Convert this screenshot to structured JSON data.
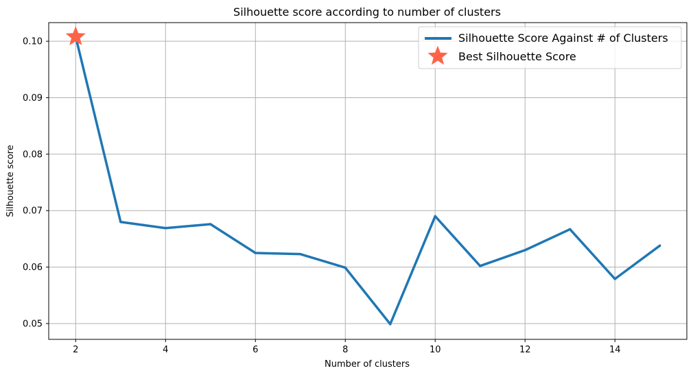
{
  "chart_data": {
    "type": "line",
    "title": "Silhouette score according to number of clusters",
    "xlabel": "Number of clusters",
    "ylabel": "Silhouette score",
    "xlim": [
      1.4,
      15.6
    ],
    "ylim": [
      0.0472,
      0.1033
    ],
    "xticks": [
      2,
      4,
      6,
      8,
      10,
      12,
      14
    ],
    "yticks": [
      0.05,
      0.06,
      0.07,
      0.08,
      0.09,
      0.1
    ],
    "ytick_labels": [
      "0.05",
      "0.06",
      "0.07",
      "0.08",
      "0.09",
      "0.10"
    ],
    "grid": true,
    "legend_position": "top-right",
    "series": [
      {
        "name": "Silhouette Score Against # of Clusters",
        "color": "#1f77b4",
        "x": [
          2,
          3,
          4,
          5,
          6,
          7,
          8,
          9,
          10,
          11,
          12,
          13,
          14,
          15
        ],
        "y": [
          0.1008,
          0.068,
          0.0669,
          0.0676,
          0.0625,
          0.0623,
          0.0599,
          0.0499,
          0.069,
          0.0602,
          0.063,
          0.0667,
          0.0579,
          0.0638
        ]
      }
    ],
    "best": {
      "name": "Best Silhouette Score",
      "color": "#ff6347",
      "marker": "star",
      "x": 2,
      "y": 0.1008
    }
  }
}
